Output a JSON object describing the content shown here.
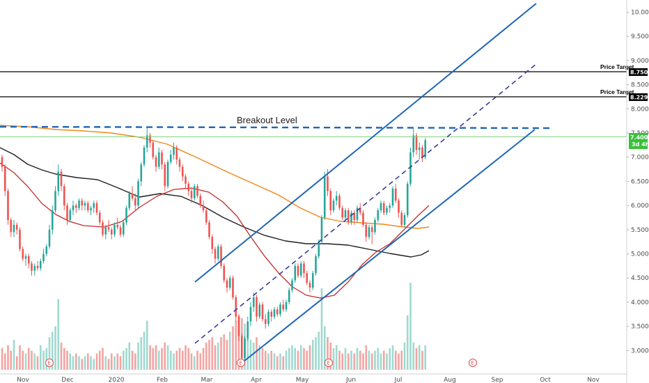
{
  "chart_data": {
    "type": "candlestick",
    "y_axis": {
      "ticks": [
        "10.0000",
        "9.5000",
        "9.0000",
        "8.5000",
        "8.0000",
        "7.5000",
        "7.0000",
        "6.5000",
        "6.0000",
        "5.5000",
        "5.0000",
        "4.5000",
        "4.0000",
        "3.5000",
        "3.0000"
      ],
      "range": [
        2.65,
        10.3
      ]
    },
    "x_axis": {
      "labels": [
        "Nov",
        "Dec",
        "2020",
        "Feb",
        "Mar",
        "Apr",
        "May",
        "Jun",
        "Jul",
        "Aug",
        "Sep",
        "Oct",
        "Nov"
      ]
    },
    "candles": [
      [
        7.0,
        7.05,
        6.7,
        6.8
      ],
      [
        6.8,
        6.85,
        6.2,
        6.3
      ],
      [
        6.3,
        6.35,
        5.6,
        5.7
      ],
      [
        5.7,
        5.75,
        5.35,
        5.45
      ],
      [
        5.45,
        5.7,
        5.35,
        5.6
      ],
      [
        5.6,
        5.65,
        5.4,
        5.5
      ],
      [
        5.5,
        5.55,
        5.05,
        5.1
      ],
      [
        5.1,
        5.15,
        4.85,
        4.9
      ],
      [
        4.9,
        5.0,
        4.75,
        4.95
      ],
      [
        4.95,
        5.0,
        4.7,
        4.8
      ],
      [
        4.8,
        4.85,
        4.55,
        4.65
      ],
      [
        4.65,
        4.8,
        4.55,
        4.75
      ],
      [
        4.75,
        4.85,
        4.65,
        4.7
      ],
      [
        4.7,
        4.9,
        4.65,
        4.85
      ],
      [
        4.85,
        5.1,
        4.8,
        5.0
      ],
      [
        5.0,
        5.2,
        4.95,
        5.15
      ],
      [
        5.15,
        5.6,
        5.1,
        5.5
      ],
      [
        5.5,
        6.0,
        5.4,
        5.9
      ],
      [
        5.9,
        6.4,
        5.85,
        6.3
      ],
      [
        6.3,
        6.85,
        6.2,
        6.7
      ],
      [
        6.7,
        6.75,
        6.3,
        6.4
      ],
      [
        6.4,
        6.45,
        5.9,
        6.0
      ],
      [
        6.0,
        6.05,
        5.6,
        5.7
      ],
      [
        5.7,
        5.95,
        5.65,
        5.9
      ],
      [
        5.9,
        6.1,
        5.8,
        6.0
      ],
      [
        6.0,
        6.05,
        5.85,
        5.95
      ],
      [
        5.95,
        6.15,
        5.9,
        6.1
      ],
      [
        6.1,
        6.15,
        5.9,
        6.0
      ],
      [
        6.0,
        6.1,
        5.9,
        6.05
      ],
      [
        6.05,
        6.1,
        5.85,
        5.9
      ],
      [
        5.9,
        6.0,
        5.8,
        5.95
      ],
      [
        5.95,
        6.1,
        5.85,
        6.05
      ],
      [
        6.05,
        6.1,
        5.8,
        5.85
      ],
      [
        5.85,
        5.9,
        5.6,
        5.65
      ],
      [
        5.65,
        5.7,
        5.35,
        5.4
      ],
      [
        5.4,
        5.6,
        5.3,
        5.55
      ],
      [
        5.55,
        5.7,
        5.45,
        5.5
      ],
      [
        5.5,
        5.55,
        5.3,
        5.4
      ],
      [
        5.4,
        5.65,
        5.35,
        5.6
      ],
      [
        5.6,
        5.75,
        5.5,
        5.55
      ],
      [
        5.55,
        5.6,
        5.35,
        5.4
      ],
      [
        5.4,
        5.7,
        5.35,
        5.65
      ],
      [
        5.65,
        6.0,
        5.6,
        5.95
      ],
      [
        5.95,
        6.3,
        5.9,
        6.25
      ],
      [
        6.25,
        6.4,
        6.1,
        6.15
      ],
      [
        6.15,
        6.25,
        5.9,
        6.0
      ],
      [
        6.0,
        6.55,
        5.95,
        6.5
      ],
      [
        6.5,
        6.9,
        6.4,
        6.85
      ],
      [
        6.85,
        7.25,
        6.8,
        7.2
      ],
      [
        7.2,
        7.6,
        7.1,
        7.45
      ],
      [
        7.45,
        7.5,
        7.2,
        7.3
      ],
      [
        7.3,
        7.35,
        6.95,
        7.0
      ],
      [
        7.0,
        7.05,
        6.7,
        6.8
      ],
      [
        6.8,
        7.2,
        6.75,
        7.1
      ],
      [
        7.1,
        7.15,
        6.75,
        6.85
      ],
      [
        6.85,
        6.9,
        6.3,
        6.4
      ],
      [
        6.4,
        6.95,
        6.35,
        6.9
      ],
      [
        6.9,
        7.15,
        6.85,
        7.05
      ],
      [
        7.05,
        7.3,
        6.95,
        7.2
      ],
      [
        7.2,
        7.25,
        6.85,
        6.95
      ],
      [
        6.95,
        7.0,
        6.7,
        6.8
      ],
      [
        6.8,
        6.85,
        6.5,
        6.6
      ],
      [
        6.6,
        6.65,
        6.35,
        6.45
      ],
      [
        6.45,
        6.5,
        6.2,
        6.3
      ],
      [
        6.3,
        6.35,
        6.05,
        6.15
      ],
      [
        6.15,
        6.45,
        6.1,
        6.4
      ],
      [
        6.4,
        6.45,
        6.15,
        6.2
      ],
      [
        6.2,
        6.25,
        5.95,
        6.0
      ],
      [
        6.0,
        6.1,
        5.85,
        5.9
      ],
      [
        5.9,
        5.95,
        5.6,
        5.65
      ],
      [
        5.65,
        5.7,
        5.3,
        5.35
      ],
      [
        5.35,
        5.4,
        5.0,
        5.1
      ],
      [
        5.1,
        5.15,
        4.8,
        4.9
      ],
      [
        4.9,
        5.2,
        4.85,
        5.15
      ],
      [
        5.15,
        5.2,
        4.7,
        4.75
      ],
      [
        4.75,
        4.8,
        4.4,
        4.45
      ],
      [
        4.45,
        4.5,
        4.2,
        4.3
      ],
      [
        4.3,
        4.55,
        4.25,
        4.5
      ],
      [
        4.5,
        4.55,
        4.05,
        4.1
      ],
      [
        4.1,
        4.15,
        3.6,
        3.7
      ],
      [
        3.7,
        3.75,
        3.2,
        3.3
      ],
      [
        3.3,
        3.35,
        2.75,
        2.85
      ],
      [
        2.85,
        3.3,
        2.8,
        3.25
      ],
      [
        3.25,
        3.7,
        3.2,
        3.6
      ],
      [
        3.6,
        4.0,
        3.5,
        3.9
      ],
      [
        3.9,
        4.2,
        3.8,
        4.1
      ],
      [
        4.1,
        4.15,
        3.6,
        3.7
      ],
      [
        3.7,
        4.0,
        3.65,
        3.95
      ],
      [
        3.95,
        4.0,
        3.6,
        3.65
      ],
      [
        3.65,
        3.75,
        3.45,
        3.55
      ],
      [
        3.55,
        3.85,
        3.5,
        3.8
      ],
      [
        3.8,
        3.85,
        3.6,
        3.7
      ],
      [
        3.7,
        3.9,
        3.65,
        3.85
      ],
      [
        3.85,
        3.9,
        3.7,
        3.75
      ],
      [
        3.75,
        4.0,
        3.7,
        3.95
      ],
      [
        3.95,
        4.05,
        3.8,
        3.85
      ],
      [
        3.85,
        4.05,
        3.8,
        4.0
      ],
      [
        4.0,
        4.3,
        3.95,
        4.25
      ],
      [
        4.25,
        4.5,
        4.2,
        4.45
      ],
      [
        4.45,
        4.8,
        4.4,
        4.75
      ],
      [
        4.75,
        4.8,
        4.5,
        4.55
      ],
      [
        4.55,
        4.85,
        4.5,
        4.8
      ],
      [
        4.8,
        4.85,
        4.5,
        4.6
      ],
      [
        4.6,
        4.65,
        4.35,
        4.4
      ],
      [
        4.4,
        4.45,
        4.2,
        4.3
      ],
      [
        4.3,
        4.65,
        4.25,
        4.6
      ],
      [
        4.6,
        5.0,
        4.55,
        4.95
      ],
      [
        4.95,
        5.3,
        4.9,
        5.25
      ],
      [
        5.25,
        5.8,
        5.2,
        5.75
      ],
      [
        5.75,
        6.7,
        5.7,
        6.6
      ],
      [
        6.6,
        6.75,
        6.2,
        6.3
      ],
      [
        6.3,
        6.35,
        5.8,
        5.9
      ],
      [
        5.9,
        6.15,
        5.85,
        6.1
      ],
      [
        6.1,
        6.3,
        6.0,
        6.2
      ],
      [
        6.2,
        6.25,
        5.9,
        5.95
      ],
      [
        5.95,
        6.0,
        5.7,
        5.75
      ],
      [
        5.75,
        5.95,
        5.7,
        5.9
      ],
      [
        5.9,
        5.95,
        5.6,
        5.65
      ],
      [
        5.65,
        5.9,
        5.6,
        5.85
      ],
      [
        5.85,
        5.9,
        5.6,
        5.7
      ],
      [
        5.7,
        6.0,
        5.65,
        5.95
      ],
      [
        5.95,
        6.05,
        5.8,
        5.85
      ],
      [
        5.85,
        5.9,
        5.55,
        5.6
      ],
      [
        5.6,
        5.65,
        5.25,
        5.35
      ],
      [
        5.35,
        5.6,
        5.3,
        5.55
      ],
      [
        5.55,
        5.6,
        5.2,
        5.45
      ],
      [
        5.45,
        5.75,
        5.4,
        5.7
      ],
      [
        5.7,
        5.95,
        5.65,
        5.9
      ],
      [
        5.9,
        6.1,
        5.85,
        6.05
      ],
      [
        6.05,
        6.1,
        5.8,
        5.85
      ],
      [
        5.85,
        6.0,
        5.8,
        5.95
      ],
      [
        5.95,
        6.05,
        5.85,
        6.0
      ],
      [
        6.0,
        6.4,
        5.95,
        6.35
      ],
      [
        6.35,
        6.45,
        6.05,
        6.1
      ],
      [
        6.1,
        6.15,
        5.75,
        5.85
      ],
      [
        5.85,
        5.9,
        5.55,
        5.6
      ],
      [
        5.6,
        5.85,
        5.55,
        5.8
      ],
      [
        5.8,
        6.5,
        5.75,
        6.45
      ],
      [
        6.45,
        7.2,
        6.4,
        7.1
      ],
      [
        7.1,
        7.6,
        7.0,
        7.45
      ],
      [
        7.45,
        7.5,
        7.05,
        7.15
      ],
      [
        7.15,
        7.3,
        6.95,
        7.2
      ],
      [
        7.2,
        7.25,
        6.9,
        7.0
      ],
      [
        7.0,
        7.4,
        6.95,
        7.35
      ]
    ],
    "volume": [
      0.8,
      0.6,
      0.9,
      0.7,
      1.1,
      0.5,
      0.9,
      0.7,
      0.6,
      0.8,
      0.7,
      0.6,
      0.5,
      0.9,
      0.7,
      0.8,
      1.2,
      1.4,
      1.6,
      2.6,
      1.0,
      0.8,
      0.7,
      0.6,
      0.5,
      0.6,
      0.5,
      0.4,
      0.5,
      0.6,
      0.5,
      0.4,
      0.6,
      0.7,
      0.8,
      0.5,
      0.4,
      0.6,
      0.5,
      0.6,
      0.5,
      0.7,
      0.8,
      1.0,
      0.7,
      0.6,
      1.0,
      1.2,
      1.4,
      1.8,
      0.9,
      0.8,
      0.9,
      0.7,
      0.8,
      1.0,
      0.9,
      0.7,
      0.6,
      0.7,
      0.8,
      0.7,
      0.9,
      0.8,
      0.6,
      0.5,
      0.7,
      0.6,
      0.8,
      1.0,
      1.1,
      1.2,
      0.9,
      1.0,
      1.2,
      1.3,
      1.1,
      1.4,
      1.6,
      1.8,
      2.0,
      1.9,
      1.7,
      1.3,
      1.1,
      1.0,
      1.2,
      0.9,
      0.8,
      0.7,
      0.6,
      0.7,
      0.6,
      0.5,
      0.6,
      0.5,
      0.7,
      0.8,
      0.9,
      0.8,
      0.7,
      0.9,
      0.8,
      0.7,
      0.9,
      1.1,
      1.2,
      1.4,
      3.0,
      1.6,
      1.2,
      1.0,
      0.8,
      0.9,
      0.7,
      0.6,
      0.8,
      0.6,
      0.7,
      0.6,
      0.8,
      0.7,
      0.6,
      0.9,
      0.7,
      0.6,
      0.7,
      0.8,
      0.6,
      0.7,
      0.6,
      0.8,
      0.9,
      0.7,
      0.6,
      0.7,
      1.0,
      2.0,
      3.2,
      1.0,
      0.8,
      0.9,
      0.7,
      0.9
    ],
    "volume_max": 3.2,
    "breakout_level": 7.55,
    "breakout_label": "Breakout Level",
    "price_targets": [
      {
        "label": "Price Target",
        "value": 8.75,
        "tag": "8.7500"
      },
      {
        "label": "Price Target",
        "value": 8.2299,
        "tag": "8.2299"
      }
    ],
    "current_price": {
      "value": 7.4,
      "tag": "7.4000",
      "sub": "3d 4h"
    },
    "earnings_markers": [
      "E",
      "E",
      "E",
      "E",
      "E"
    ]
  },
  "colors": {
    "up": "#26a69a",
    "down": "#ef5350",
    "up_volume": "#9fd9d0",
    "down_volume": "#f4a3a1",
    "ema_black": "#1e1e1e",
    "ema_orange": "#f0861a",
    "ema_red": "#c62828",
    "channel": "#1f66b5",
    "channel_mid": "#3a3a9c",
    "price_line": "#7fd37f"
  }
}
